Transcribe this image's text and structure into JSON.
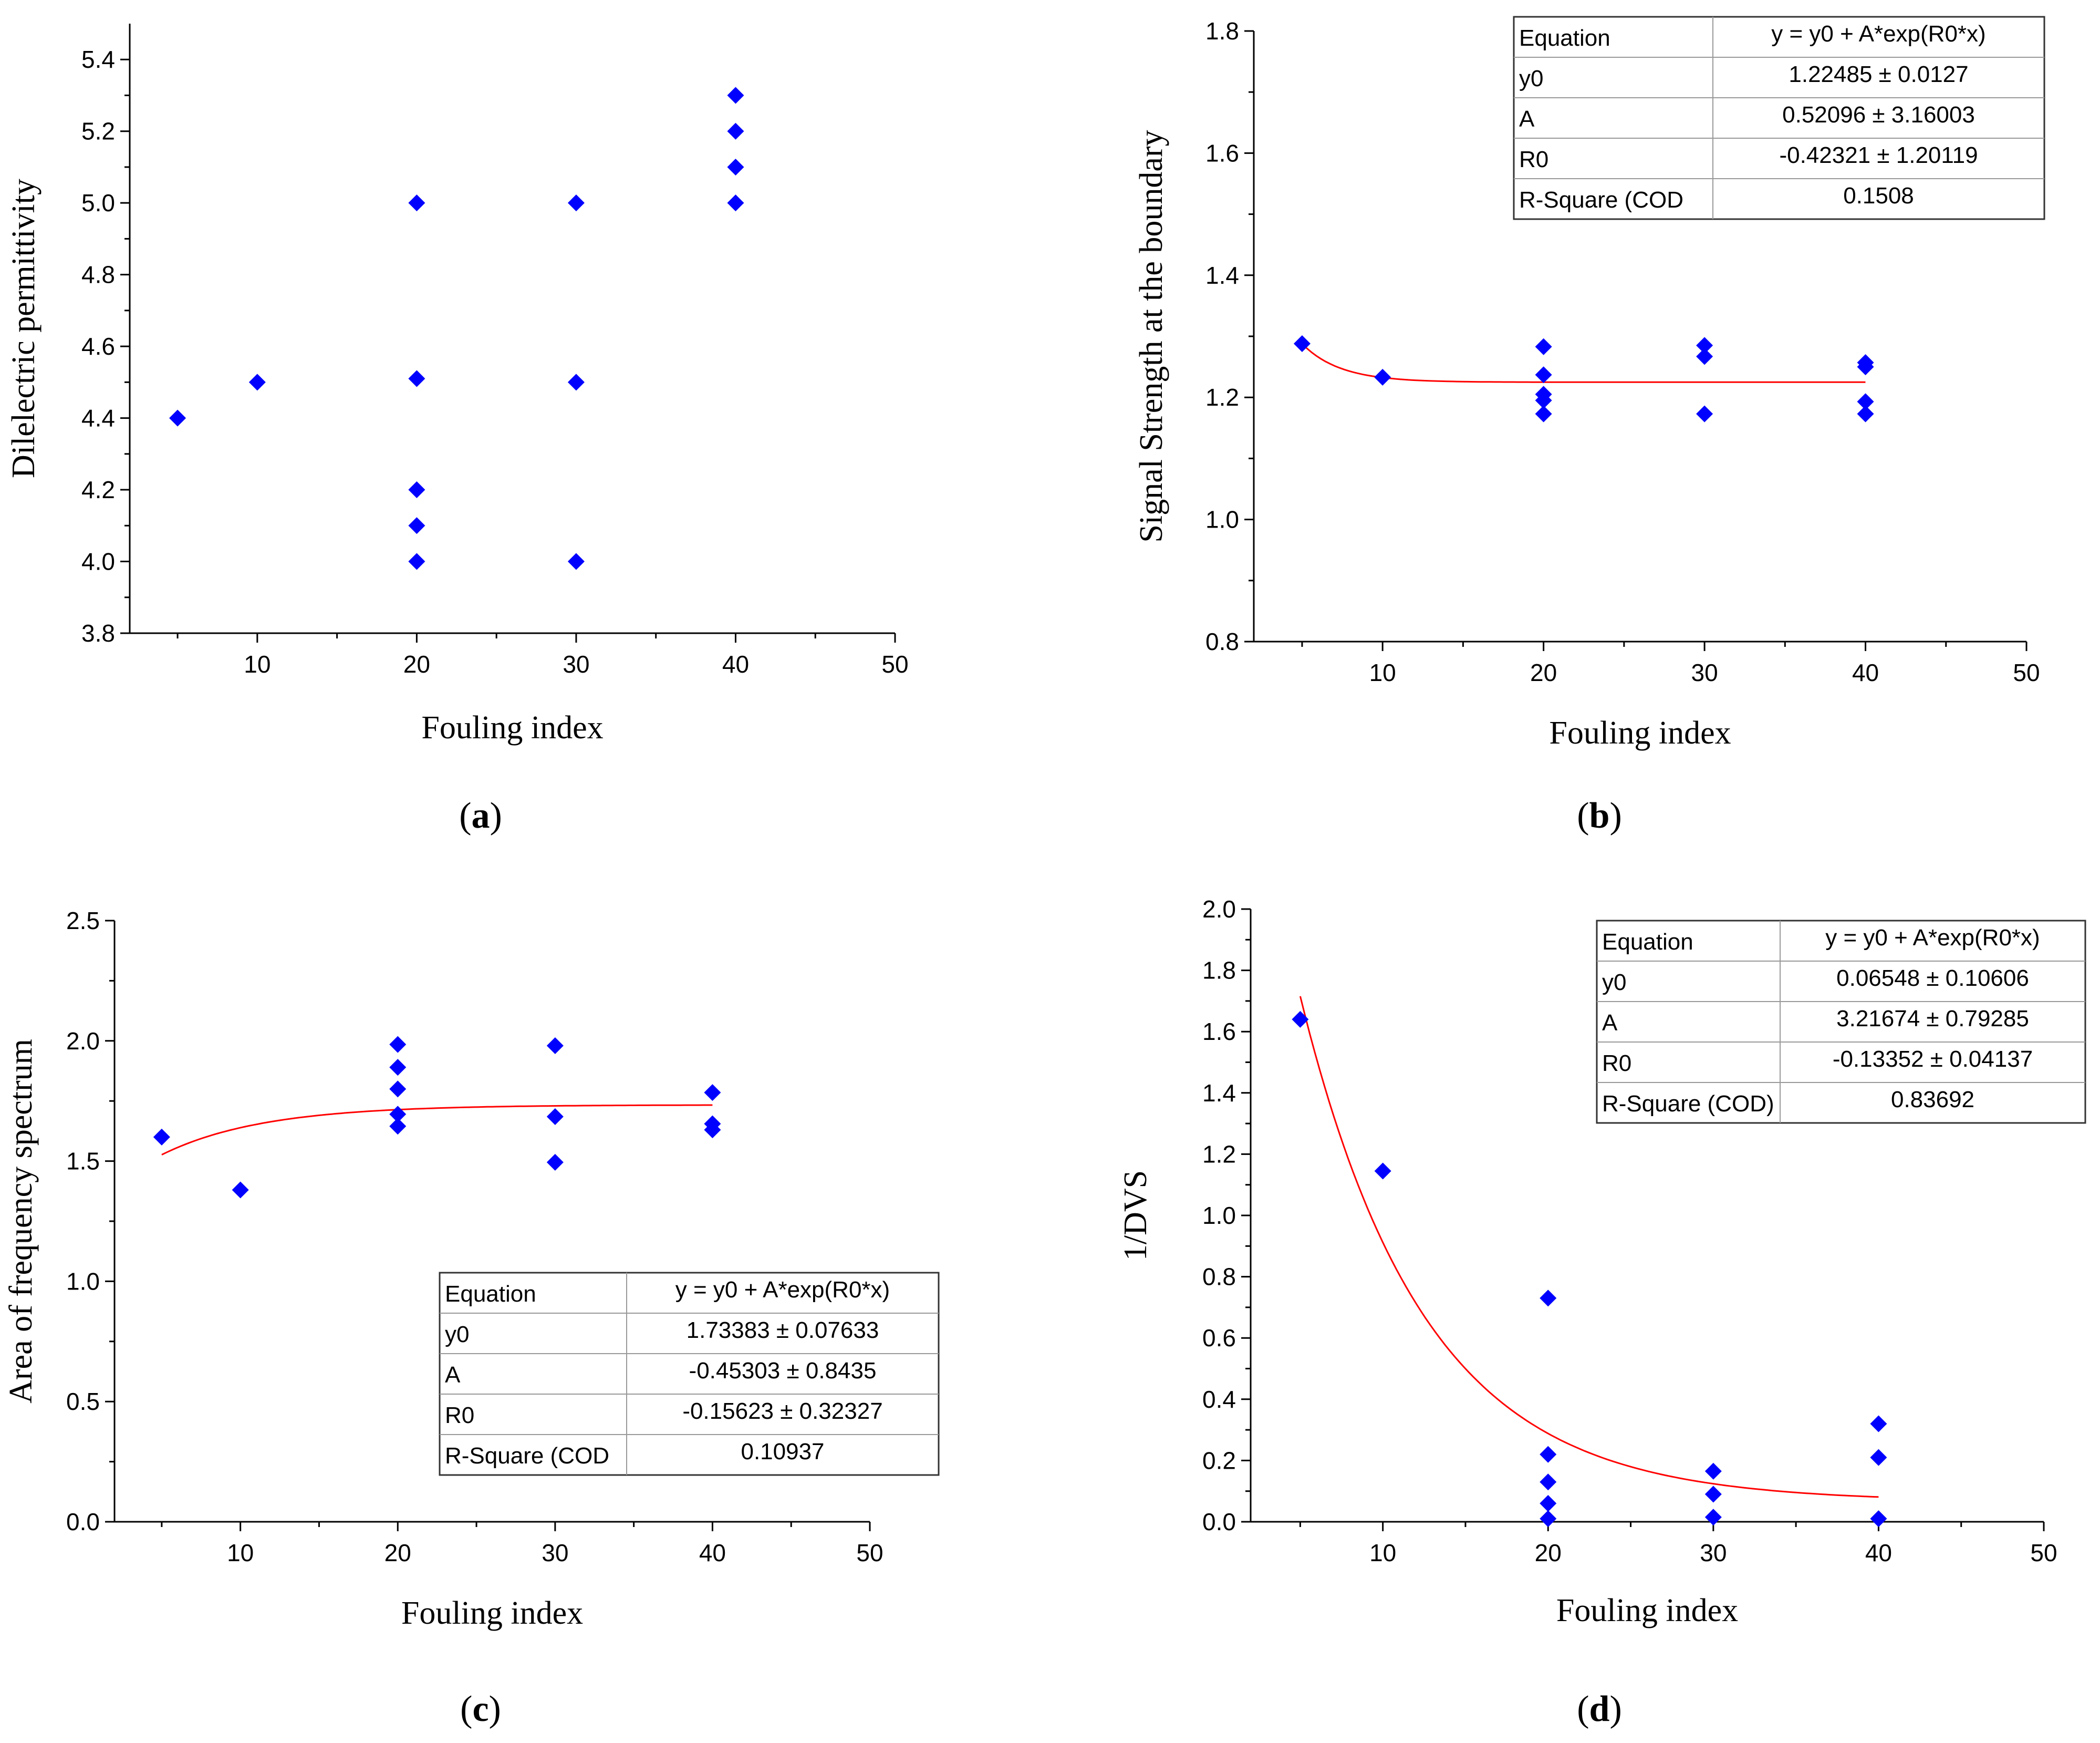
{
  "chart_data": [
    {
      "id": "a",
      "type": "scatter",
      "panel_label": "a",
      "xlabel": "Fouling index",
      "ylabel": "Dilelectric permittivity",
      "xlim": [
        2,
        50
      ],
      "ylim": [
        3.8,
        5.5
      ],
      "xticks": [
        10,
        20,
        30,
        40,
        50
      ],
      "yticks": [
        3.8,
        4.0,
        4.2,
        4.4,
        4.6,
        4.8,
        5.0,
        5.2,
        5.4
      ],
      "ydecimals": 1,
      "points": [
        [
          5,
          4.4
        ],
        [
          10,
          4.5
        ],
        [
          20,
          5.0
        ],
        [
          20,
          4.51
        ],
        [
          20,
          4.2
        ],
        [
          20,
          4.1
        ],
        [
          20,
          4.0
        ],
        [
          30,
          5.0
        ],
        [
          30,
          4.5
        ],
        [
          30,
          4.0
        ],
        [
          40,
          5.3
        ],
        [
          40,
          5.2
        ],
        [
          40,
          5.1
        ],
        [
          40,
          5.0
        ]
      ]
    },
    {
      "id": "b",
      "type": "scatter",
      "panel_label": "b",
      "xlabel": "Fouling index",
      "ylabel": "Signal Strength at the boundary",
      "xlim": [
        2,
        50
      ],
      "ylim": [
        0.8,
        1.8
      ],
      "xticks": [
        10,
        20,
        30,
        40,
        50
      ],
      "yticks": [
        0.8,
        1.0,
        1.2,
        1.4,
        1.6,
        1.8
      ],
      "ydecimals": 1,
      "points": [
        [
          5,
          1.288
        ],
        [
          10,
          1.233
        ],
        [
          20,
          1.283
        ],
        [
          20,
          1.237
        ],
        [
          20,
          1.205
        ],
        [
          20,
          1.195
        ],
        [
          20,
          1.173
        ],
        [
          30,
          1.285
        ],
        [
          30,
          1.267
        ],
        [
          30,
          1.173
        ],
        [
          40,
          1.257
        ],
        [
          40,
          1.25
        ],
        [
          40,
          1.193
        ],
        [
          40,
          1.173
        ]
      ],
      "fit": {
        "y0": 1.22485,
        "A": 0.52096,
        "R0": -0.42321,
        "x_range": [
          5,
          40
        ]
      },
      "table": {
        "position": "top-right",
        "rows": [
          [
            "Equation",
            "y = y0 + A*exp(R0*x)"
          ],
          [
            "y0",
            "1.22485 ± 0.0127"
          ],
          [
            "A",
            "0.52096 ± 3.16003"
          ],
          [
            "R0",
            "-0.42321 ± 1.20119"
          ],
          [
            "R-Square (COD",
            "0.1508"
          ]
        ]
      }
    },
    {
      "id": "c",
      "type": "scatter",
      "panel_label": "c",
      "xlabel": "Fouling index",
      "ylabel": "Area of frequency spectrum",
      "xlim": [
        2,
        50
      ],
      "ylim": [
        0,
        2.5
      ],
      "xticks": [
        10,
        20,
        30,
        40,
        50
      ],
      "yticks": [
        0.0,
        0.5,
        1.0,
        1.5,
        2.0,
        2.5
      ],
      "ydecimals": 1,
      "points": [
        [
          5,
          1.6
        ],
        [
          10,
          1.38
        ],
        [
          20,
          1.985
        ],
        [
          20,
          1.89
        ],
        [
          20,
          1.8
        ],
        [
          20,
          1.695
        ],
        [
          20,
          1.645
        ],
        [
          30,
          1.98
        ],
        [
          30,
          1.685
        ],
        [
          30,
          1.495
        ],
        [
          40,
          1.785
        ],
        [
          40,
          1.655
        ],
        [
          40,
          1.63
        ]
      ],
      "fit": {
        "y0": 1.73383,
        "A": -0.45303,
        "R0": -0.15623,
        "x_range": [
          5,
          40
        ]
      },
      "table": {
        "position": "bottom-right",
        "rows": [
          [
            "Equation",
            "y = y0 + A*exp(R0*x)"
          ],
          [
            "y0",
            "1.73383 ± 0.07633"
          ],
          [
            "A",
            "-0.45303 ± 0.8435"
          ],
          [
            "R0",
            "-0.15623 ± 0.32327"
          ],
          [
            "R-Square (COD",
            "0.10937"
          ]
        ]
      }
    },
    {
      "id": "d",
      "type": "scatter",
      "panel_label": "d",
      "xlabel": "Fouling index",
      "ylabel": "1/DVS",
      "xlim": [
        2,
        50
      ],
      "ylim": [
        0,
        2.0
      ],
      "xticks": [
        10,
        20,
        30,
        40,
        50
      ],
      "yticks": [
        0.0,
        0.2,
        0.4,
        0.6,
        0.8,
        1.0,
        1.2,
        1.4,
        1.6,
        1.8,
        2.0
      ],
      "ydecimals": 1,
      "points": [
        [
          5,
          1.64
        ],
        [
          10,
          1.145
        ],
        [
          20,
          0.73
        ],
        [
          20,
          0.22
        ],
        [
          20,
          0.13
        ],
        [
          20,
          0.06
        ],
        [
          20,
          0.01
        ],
        [
          30,
          0.165
        ],
        [
          30,
          0.09
        ],
        [
          30,
          0.015
        ],
        [
          40,
          0.32
        ],
        [
          40,
          0.21
        ],
        [
          40,
          0.01
        ]
      ],
      "fit": {
        "y0": 0.06548,
        "A": 3.21674,
        "R0": -0.13352,
        "x_range": [
          5,
          40
        ]
      },
      "table": {
        "position": "top-right",
        "rows": [
          [
            "Equation",
            "y = y0 + A*exp(R0*x)"
          ],
          [
            "y0",
            "0.06548 ± 0.10606"
          ],
          [
            "A",
            "3.21674 ± 0.79285"
          ],
          [
            "R0",
            "-0.13352 ± 0.04137"
          ],
          [
            "R-Square (COD)",
            "0.83692"
          ]
        ]
      }
    }
  ]
}
